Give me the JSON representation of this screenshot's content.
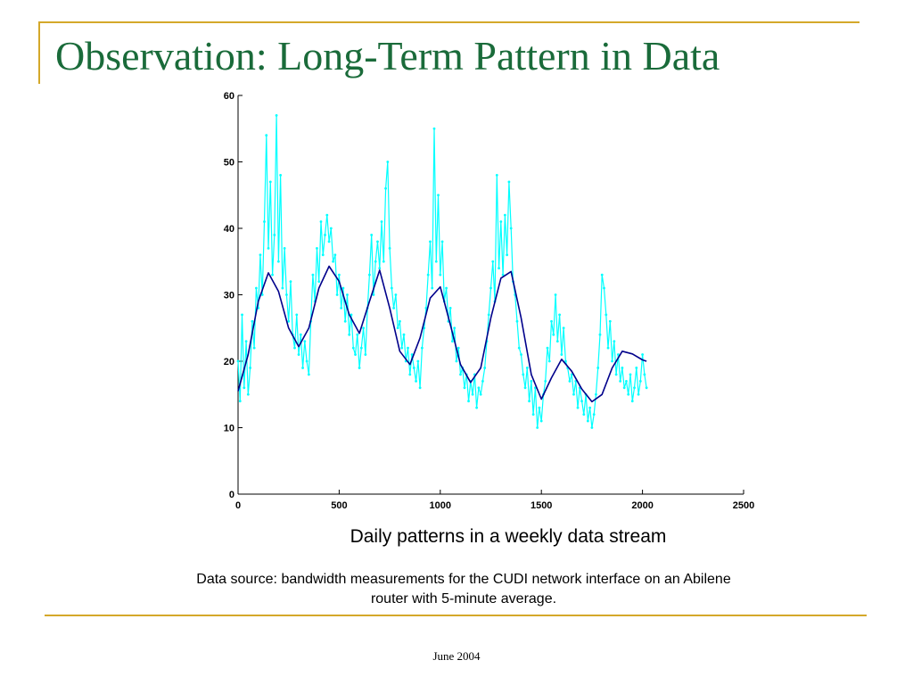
{
  "slide": {
    "title": "Observation: Long-Term Pattern in Data",
    "caption": "Daily patterns in a weekly data stream",
    "source_line1": "Data source: bandwidth measurements for the CUDI network interface on an Abilene",
    "source_line2": "router with 5-minute average.",
    "footer": "June 2004"
  },
  "colors": {
    "title": "#1a6b3a",
    "frame": "#d4a82a",
    "raw_series": "#00ffff",
    "smooth_series": "#00008b"
  },
  "chart_data": {
    "type": "line",
    "title": "",
    "xlabel": "",
    "ylabel": "",
    "xlim": [
      0,
      2500
    ],
    "ylim": [
      0,
      60
    ],
    "xticks": [
      "0",
      "500",
      "1000",
      "1500",
      "2000",
      "2500"
    ],
    "yticks": [
      "0",
      "10",
      "20",
      "30",
      "40",
      "50",
      "60"
    ],
    "grid": false,
    "legend": "none",
    "series": [
      {
        "style": "raw",
        "x": [
          0,
          10,
          20,
          30,
          40,
          50,
          60,
          70,
          80,
          90,
          100,
          110,
          120,
          130,
          140,
          150,
          160,
          170,
          180,
          190,
          200,
          210,
          220,
          230,
          240,
          250,
          260,
          270,
          280,
          290,
          300,
          310,
          320,
          330,
          340,
          350,
          360,
          370,
          380,
          390,
          400,
          410,
          420,
          430,
          440,
          450,
          460,
          470,
          480,
          490,
          500,
          510,
          520,
          530,
          540,
          550,
          560,
          570,
          580,
          590,
          600,
          610,
          620,
          630,
          640,
          650,
          660,
          670,
          680,
          690,
          700,
          710,
          720,
          730,
          740,
          750,
          760,
          770,
          780,
          790,
          800,
          810,
          820,
          830,
          840,
          850,
          860,
          870,
          880,
          890,
          900,
          910,
          920,
          930,
          940,
          950,
          960,
          970,
          980,
          990,
          1000,
          1010,
          1020,
          1030,
          1040,
          1050,
          1060,
          1070,
          1080,
          1090,
          1100,
          1110,
          1120,
          1130,
          1140,
          1150,
          1160,
          1170,
          1180,
          1190,
          1200,
          1210,
          1220,
          1230,
          1240,
          1250,
          1260,
          1270,
          1280,
          1290,
          1300,
          1310,
          1320,
          1330,
          1340,
          1350,
          1360,
          1370,
          1380,
          1390,
          1400,
          1410,
          1420,
          1430,
          1440,
          1450,
          1460,
          1470,
          1480,
          1490,
          1500,
          1510,
          1520,
          1530,
          1540,
          1550,
          1560,
          1570,
          1580,
          1590,
          1600,
          1610,
          1620,
          1630,
          1640,
          1650,
          1660,
          1670,
          1680,
          1690,
          1700,
          1710,
          1720,
          1730,
          1740,
          1750,
          1760,
          1770,
          1780,
          1790,
          1800,
          1810,
          1820,
          1830,
          1840,
          1850,
          1860,
          1870,
          1880,
          1890,
          1900,
          1910,
          1920,
          1930,
          1940,
          1950,
          1960,
          1970,
          1980,
          1990,
          2000,
          2010,
          2020
        ],
        "y": [
          20,
          14,
          27,
          16,
          23,
          15,
          19,
          26,
          22,
          31,
          28,
          36,
          30,
          41,
          54,
          37,
          47,
          33,
          39,
          57,
          35,
          48,
          31,
          37,
          30,
          26,
          32,
          24,
          22,
          27,
          21,
          24,
          19,
          23,
          20,
          18,
          26,
          33,
          29,
          37,
          32,
          41,
          36,
          39,
          42,
          38,
          40,
          35,
          36,
          30,
          33,
          28,
          31,
          26,
          30,
          24,
          27,
          22,
          21,
          24,
          19,
          22,
          25,
          21,
          28,
          33,
          39,
          30,
          35,
          38,
          34,
          41,
          35,
          46,
          50,
          37,
          31,
          28,
          30,
          25,
          26,
          22,
          24,
          20,
          22,
          18,
          21,
          19,
          17,
          20,
          16,
          22,
          25,
          28,
          33,
          38,
          31,
          55,
          35,
          45,
          33,
          38,
          29,
          31,
          26,
          28,
          23,
          25,
          20,
          22,
          18,
          19,
          16,
          18,
          14,
          17,
          15,
          18,
          13,
          16,
          15,
          17,
          19,
          23,
          27,
          31,
          35,
          29,
          48,
          34,
          41,
          33,
          42,
          36,
          47,
          40,
          32,
          30,
          26,
          22,
          21,
          18,
          16,
          19,
          14,
          17,
          12,
          16,
          10,
          13,
          11,
          15,
          17,
          22,
          20,
          26,
          24,
          30,
          23,
          27,
          21,
          25,
          20,
          19,
          17,
          18,
          15,
          17,
          13,
          16,
          14,
          12,
          15,
          11,
          13,
          10,
          12,
          15,
          19,
          24,
          33,
          31,
          27,
          22,
          26,
          20,
          23,
          18,
          21,
          17,
          19,
          16,
          17,
          15,
          18,
          14,
          16,
          19,
          15,
          17,
          21,
          18,
          16
        ]
      },
      {
        "style": "smooth",
        "x": [
          0,
          50,
          100,
          150,
          200,
          250,
          300,
          350,
          400,
          450,
          500,
          550,
          600,
          650,
          700,
          750,
          800,
          850,
          900,
          950,
          1000,
          1050,
          1100,
          1150,
          1200,
          1250,
          1300,
          1350,
          1400,
          1450,
          1500,
          1550,
          1600,
          1650,
          1700,
          1750,
          1800,
          1850,
          1900,
          1950,
          2000,
          2020
        ],
        "y": [
          15.5,
          21,
          29,
          33.3,
          30.5,
          25,
          22.2,
          25,
          31,
          34.3,
          32,
          27,
          24.2,
          29,
          33.7,
          28,
          21.5,
          19.5,
          23.5,
          29.5,
          31.2,
          25.5,
          19.5,
          16.8,
          19,
          26.5,
          32.5,
          33.5,
          26.5,
          18,
          14.3,
          17.5,
          20.3,
          18.5,
          15.8,
          13.9,
          15,
          19,
          21.5,
          21.1,
          20.2,
          20
        ]
      }
    ]
  }
}
